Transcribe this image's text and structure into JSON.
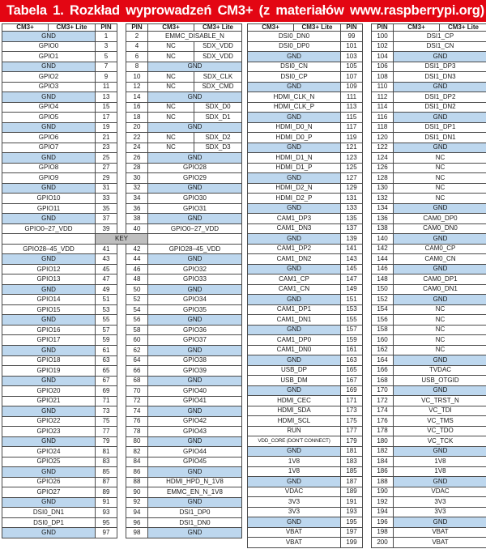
{
  "title": "Tabela 1. Rozkład wyprowadzeń CM3+ (z materiałów www.raspberrypi.org)",
  "key_label": "KEY",
  "columns": [
    "CM3+",
    "CM3+ Lite",
    "PIN",
    "PIN",
    "CM3+",
    "CM3+ Lite"
  ],
  "colors": {
    "title_bar_red": "#e30613",
    "title_text": "#ffffff",
    "gnd_row_blue": "#bdd7ee",
    "key_row_gray": "#bfbfbf",
    "cell_border": "#4a4a4a"
  },
  "left_table": {
    "rows": [
      [
        "GND",
        null,
        "1",
        "2",
        "EMMC_DISABLE_N",
        null
      ],
      [
        "GPIO0",
        null,
        "3",
        "4",
        "NC",
        "SDX_VDD"
      ],
      [
        "GPIO1",
        null,
        "5",
        "6",
        "NC",
        "SDX_VDD"
      ],
      [
        "GND",
        null,
        "7",
        "8",
        "GND",
        null
      ],
      [
        "GPIO2",
        null,
        "9",
        "10",
        "NC",
        "SDX_CLK"
      ],
      [
        "GPIO3",
        null,
        "11",
        "12",
        "NC",
        "SDX_CMD"
      ],
      [
        "GND",
        null,
        "13",
        "14",
        "GND",
        null
      ],
      [
        "GPIO4",
        null,
        "15",
        "16",
        "NC",
        "SDX_D0"
      ],
      [
        "GPIO5",
        null,
        "17",
        "18",
        "NC",
        "SDX_D1"
      ],
      [
        "GND",
        null,
        "19",
        "20",
        "GND",
        null
      ],
      [
        "GPIO6",
        null,
        "21",
        "22",
        "NC",
        "SDX_D2"
      ],
      [
        "GPIO7",
        null,
        "23",
        "24",
        "NC",
        "SDX_D3"
      ],
      [
        "GND",
        null,
        "25",
        "26",
        "GND",
        null
      ],
      [
        "GPIO8",
        null,
        "27",
        "28",
        "GPIO28",
        null
      ],
      [
        "GPIO9",
        null,
        "29",
        "30",
        "GPIO29",
        null
      ],
      [
        "GND",
        null,
        "31",
        "32",
        "GND",
        null
      ],
      [
        "GPIO10",
        null,
        "33",
        "34",
        "GPIO30",
        null
      ],
      [
        "GPIO11",
        null,
        "35",
        "36",
        "GPIO31",
        null
      ],
      [
        "GND",
        null,
        "37",
        "38",
        "GND",
        null
      ],
      [
        "GPIO0–27_VDD",
        null,
        "39",
        "40",
        "GPIO0–27_VDD",
        null
      ],
      "KEY",
      [
        "GPIO28–45_VDD",
        null,
        "41",
        "42",
        "GPIO28–45_VDD",
        null
      ],
      [
        "GND",
        null,
        "43",
        "44",
        "GND",
        null
      ],
      [
        "GPIO12",
        null,
        "45",
        "46",
        "GPIO32",
        null
      ],
      [
        "GPIO13",
        null,
        "47",
        "48",
        "GPIO33",
        null
      ],
      [
        "GND",
        null,
        "49",
        "50",
        "GND",
        null
      ],
      [
        "GPIO14",
        null,
        "51",
        "52",
        "GPIO34",
        null
      ],
      [
        "GPIO15",
        null,
        "53",
        "54",
        "GPIO35",
        null
      ],
      [
        "GND",
        null,
        "55",
        "56",
        "GND",
        null
      ],
      [
        "GPIO16",
        null,
        "57",
        "58",
        "GPIO36",
        null
      ],
      [
        "GPIO17",
        null,
        "59",
        "60",
        "GPIO37",
        null
      ],
      [
        "GND",
        null,
        "61",
        "62",
        "GND",
        null
      ],
      [
        "GPIO18",
        null,
        "63",
        "64",
        "GPIO38",
        null
      ],
      [
        "GPIO19",
        null,
        "65",
        "66",
        "GPIO39",
        null
      ],
      [
        "GND",
        null,
        "67",
        "68",
        "GND",
        null
      ],
      [
        "GPIO20",
        null,
        "69",
        "70",
        "GPIO40",
        null
      ],
      [
        "GPIO21",
        null,
        "71",
        "72",
        "GPIO41",
        null
      ],
      [
        "GND",
        null,
        "73",
        "74",
        "GND",
        null
      ],
      [
        "GPIO22",
        null,
        "75",
        "76",
        "GPIO42",
        null
      ],
      [
        "GPIO23",
        null,
        "77",
        "78",
        "GPIO43",
        null
      ],
      [
        "GND",
        null,
        "79",
        "80",
        "GND",
        null
      ],
      [
        "GPIO24",
        null,
        "81",
        "82",
        "GPIO44",
        null
      ],
      [
        "GPIO25",
        null,
        "83",
        "84",
        "GPIO45",
        null
      ],
      [
        "GND",
        null,
        "85",
        "86",
        "GND",
        null
      ],
      [
        "GPIO26",
        null,
        "87",
        "88",
        "HDMI_HPD_N_1V8",
        null
      ],
      [
        "GPIO27",
        null,
        "89",
        "90",
        "EMMC_EN_N_1V8",
        null
      ],
      [
        "GND",
        null,
        "91",
        "92",
        "GND",
        null
      ],
      [
        "DSI0_DN1",
        null,
        "93",
        "94",
        "DSI1_DP0",
        null
      ],
      [
        "DSI0_DP1",
        null,
        "95",
        "96",
        "DSI1_DN0",
        null
      ],
      [
        "GND",
        null,
        "97",
        "98",
        "GND",
        null
      ]
    ]
  },
  "right_table": {
    "rows": [
      [
        "DSI0_DN0",
        null,
        "99",
        "100",
        "DSI1_CP",
        null
      ],
      [
        "DSI0_DP0",
        null,
        "101",
        "102",
        "DSI1_CN",
        null
      ],
      [
        "GND",
        null,
        "103",
        "104",
        "GND",
        null
      ],
      [
        "DSI0_CN",
        null,
        "105",
        "106",
        "DSI1_DP3",
        null
      ],
      [
        "DSI0_CP",
        null,
        "107",
        "108",
        "DSI1_DN3",
        null
      ],
      [
        "GND",
        null,
        "109",
        "110",
        "GND",
        null
      ],
      [
        "HDMI_CLK_N",
        null,
        "111",
        "112",
        "DSI1_DP2",
        null
      ],
      [
        "HDMI_CLK_P",
        null,
        "113",
        "114",
        "DSI1_DN2",
        null
      ],
      [
        "GND",
        null,
        "115",
        "116",
        "GND",
        null
      ],
      [
        "HDMI_D0_N",
        null,
        "117",
        "118",
        "DSI1_DP1",
        null
      ],
      [
        "HDMI_D0_P",
        null,
        "119",
        "120",
        "DSI1_DN1",
        null
      ],
      [
        "GND",
        null,
        "121",
        "122",
        "GND",
        null
      ],
      [
        "HDMI_D1_N",
        null,
        "123",
        "124",
        "NC",
        null
      ],
      [
        "HDMI_D1_P",
        null,
        "125",
        "126",
        "NC",
        null
      ],
      [
        "GND",
        null,
        "127",
        "128",
        "NC",
        null
      ],
      [
        "HDMI_D2_N",
        null,
        "129",
        "130",
        "NC",
        null
      ],
      [
        "HDMI_D2_P",
        null,
        "131",
        "132",
        "NC",
        null
      ],
      [
        "GND",
        null,
        "133",
        "134",
        "GND",
        null
      ],
      [
        "CAM1_DP3",
        null,
        "135",
        "136",
        "CAM0_DP0",
        null
      ],
      [
        "CAM1_DN3",
        null,
        "137",
        "138",
        "CAM0_DN0",
        null
      ],
      [
        "GND",
        null,
        "139",
        "140",
        "GND",
        null
      ],
      [
        "CAM1_DP2",
        null,
        "141",
        "142",
        "CAM0_CP",
        null
      ],
      [
        "CAM1_DN2",
        null,
        "143",
        "144",
        "CAM0_CN",
        null
      ],
      [
        "GND",
        null,
        "145",
        "146",
        "GND",
        null
      ],
      [
        "CAM1_CP",
        null,
        "147",
        "148",
        "CAM0_DP1",
        null
      ],
      [
        "CAM1_CN",
        null,
        "149",
        "150",
        "CAM0_DN1",
        null
      ],
      [
        "GND",
        null,
        "151",
        "152",
        "GND",
        null
      ],
      [
        "CAM1_DP1",
        null,
        "153",
        "154",
        "NC",
        null
      ],
      [
        "CAM1_DN1",
        null,
        "155",
        "156",
        "NC",
        null
      ],
      [
        "GND",
        null,
        "157",
        "158",
        "NC",
        null
      ],
      [
        "CAM1_DP0",
        null,
        "159",
        "160",
        "NC",
        null
      ],
      [
        "CAM1_DN0",
        null,
        "161",
        "162",
        "NC",
        null
      ],
      [
        "GND",
        null,
        "163",
        "164",
        "GND",
        null
      ],
      [
        "USB_DP",
        null,
        "165",
        "166",
        "TVDAC",
        null
      ],
      [
        "USB_DM",
        null,
        "167",
        "168",
        "USB_OTGID",
        null
      ],
      [
        "GND",
        null,
        "169",
        "170",
        "GND",
        null
      ],
      [
        "HDMI_CEC",
        null,
        "171",
        "172",
        "VC_TRST_N",
        null
      ],
      [
        "HDMI_SDA",
        null,
        "173",
        "174",
        "VC_TDI",
        null
      ],
      [
        "HDMI_SCL",
        null,
        "175",
        "176",
        "VC_TMS",
        null
      ],
      [
        "RUN",
        null,
        "177",
        "178",
        "VC_TDO",
        null
      ],
      [
        "VDD_CORE (DON'T CONNECT)",
        null,
        "179",
        "180",
        "VC_TCK",
        null
      ],
      [
        "GND",
        null,
        "181",
        "182",
        "GND",
        null
      ],
      [
        "1V8",
        null,
        "183",
        "184",
        "1V8",
        null
      ],
      [
        "1V8",
        null,
        "185",
        "186",
        "1V8",
        null
      ],
      [
        "GND",
        null,
        "187",
        "188",
        "GND",
        null
      ],
      [
        "VDAC",
        null,
        "189",
        "190",
        "VDAC",
        null
      ],
      [
        "3V3",
        null,
        "191",
        "192",
        "3V3",
        null
      ],
      [
        "3V3",
        null,
        "193",
        "194",
        "3V3",
        null
      ],
      [
        "GND",
        null,
        "195",
        "196",
        "GND",
        null
      ],
      [
        "VBAT",
        null,
        "197",
        "198",
        "VBAT",
        null
      ],
      [
        "VBAT",
        null,
        "199",
        "200",
        "VBAT",
        null
      ]
    ]
  }
}
